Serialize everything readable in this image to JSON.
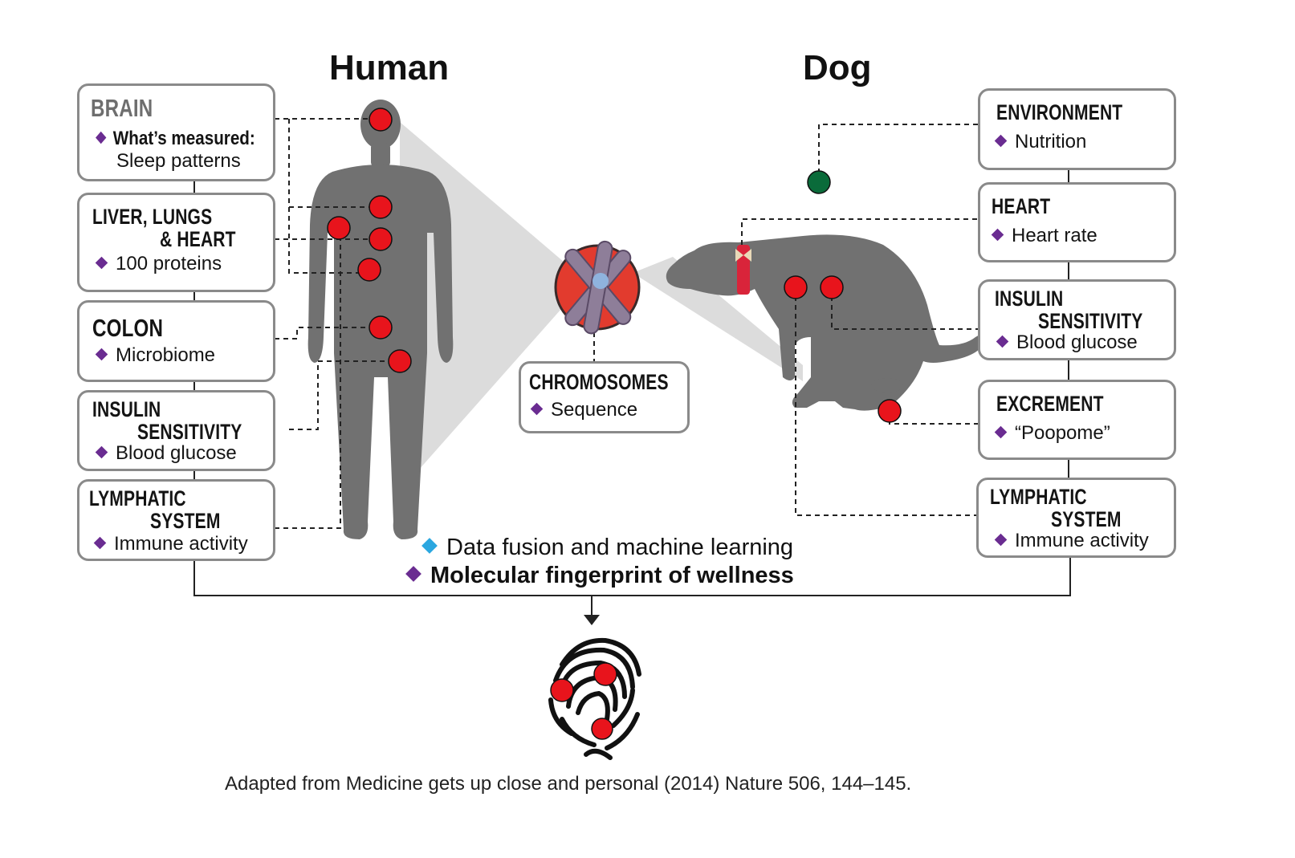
{
  "headings": {
    "human": "Human",
    "dog": "Dog"
  },
  "human_boxes": {
    "brain": {
      "title": "BRAIN",
      "item_label": "What’s measured:",
      "item_value": "Sleep patterns"
    },
    "liver": {
      "title_line1": "LIVER, LUNGS",
      "title_line2": "& HEART",
      "item": "100 proteins"
    },
    "colon": {
      "title": "COLON",
      "item": "Microbiome"
    },
    "insulin": {
      "title_line1": "INSULIN",
      "title_line2": "SENSITIVITY",
      "item": "Blood glucose"
    },
    "lymph": {
      "title_line1": "LYMPHATIC",
      "title_line2": "SYSTEM",
      "item": "Immune activity"
    }
  },
  "chromosomes": {
    "title": "CHROMOSOMES",
    "item": "Sequence"
  },
  "dog_boxes": {
    "environment": {
      "title": "ENVIRONMENT",
      "item": "Nutrition"
    },
    "heart": {
      "title": "HEART",
      "item": "Heart rate"
    },
    "insulin": {
      "title_line1": "INSULIN",
      "title_line2": "SENSITIVITY",
      "item": "Blood glucose"
    },
    "excrement": {
      "title": "EXCREMENT",
      "item": "“Poopome”"
    },
    "lymph": {
      "title_line1": "LYMPHATIC",
      "title_line2": "SYSTEM",
      "item": "Immune activity"
    }
  },
  "legend": {
    "data_fusion": "Data fusion and machine learning",
    "fingerprint": "Molecular fingerprint of wellness"
  },
  "citation": "Adapted from Medicine gets up close and personal (2014) Nature 506, 144–145.",
  "colors": {
    "box_border": "#8a8a8a",
    "silhouette": "#717171",
    "marker_red": "#e8141c",
    "marker_green": "#0a6b3a",
    "diamond_purple": "#6a2c91",
    "diamond_blue": "#2ba7e0",
    "projection": "#dcdcdc"
  }
}
